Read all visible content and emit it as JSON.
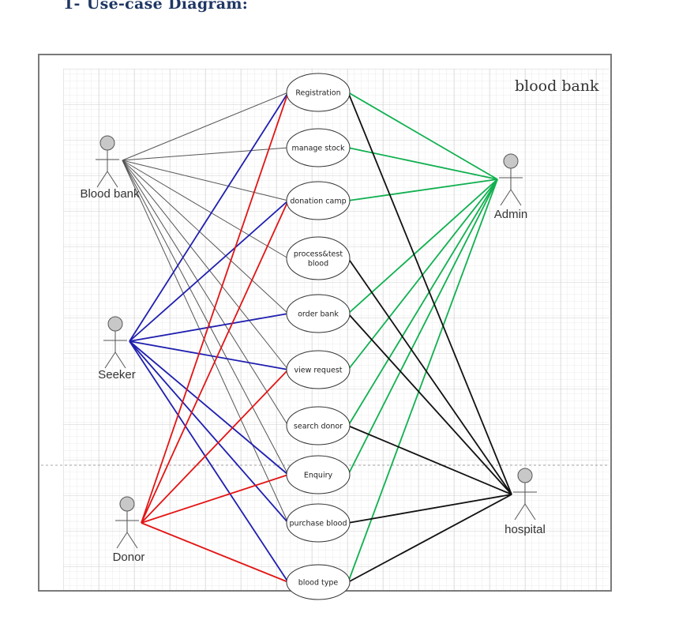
{
  "heading": {
    "number": "1-",
    "text": "Use-case Diagram:"
  },
  "diagram": {
    "title": "blood bank",
    "colors": {
      "blood_bank": "#555555",
      "seeker": "#1f1fb0",
      "donor": "#e31414",
      "admin": "#10b050",
      "hospital": "#111111",
      "grid": "#dcdcdc"
    },
    "actors": [
      {
        "id": "blood_bank",
        "label": "Blood bank"
      },
      {
        "id": "seeker",
        "label": "Seeker"
      },
      {
        "id": "donor",
        "label": "Donor"
      },
      {
        "id": "admin",
        "label": "Admin"
      },
      {
        "id": "hospital",
        "label": "hospital"
      }
    ],
    "use_cases": [
      {
        "id": "registration",
        "lines": [
          "Registration"
        ]
      },
      {
        "id": "manage_stock",
        "lines": [
          "manage stock"
        ]
      },
      {
        "id": "donation_camp",
        "lines": [
          "donation camp"
        ]
      },
      {
        "id": "process_test_blood",
        "lines": [
          "process&test",
          "blood"
        ]
      },
      {
        "id": "order_bank",
        "lines": [
          "order bank"
        ]
      },
      {
        "id": "view_request",
        "lines": [
          "view request"
        ]
      },
      {
        "id": "search_donor",
        "lines": [
          "search donor"
        ]
      },
      {
        "id": "enquiry",
        "lines": [
          "Enquiry"
        ]
      },
      {
        "id": "purchase_blood",
        "lines": [
          "purchase blood"
        ]
      },
      {
        "id": "blood_type",
        "lines": [
          "blood type"
        ]
      }
    ],
    "associations": {
      "blood_bank": [
        "registration",
        "manage_stock",
        "donation_camp",
        "process_test_blood",
        "order_bank",
        "view_request",
        "search_donor",
        "enquiry",
        "purchase_blood"
      ],
      "seeker": [
        "registration",
        "donation_camp",
        "order_bank",
        "view_request",
        "enquiry",
        "purchase_blood",
        "blood_type"
      ],
      "donor": [
        "registration",
        "donation_camp",
        "view_request",
        "enquiry",
        "blood_type"
      ],
      "admin": [
        "registration",
        "manage_stock",
        "donation_camp",
        "order_bank",
        "view_request",
        "search_donor",
        "enquiry",
        "blood_type"
      ],
      "hospital": [
        "registration",
        "process_test_blood",
        "order_bank",
        "search_donor",
        "purchase_blood",
        "blood_type"
      ]
    }
  }
}
